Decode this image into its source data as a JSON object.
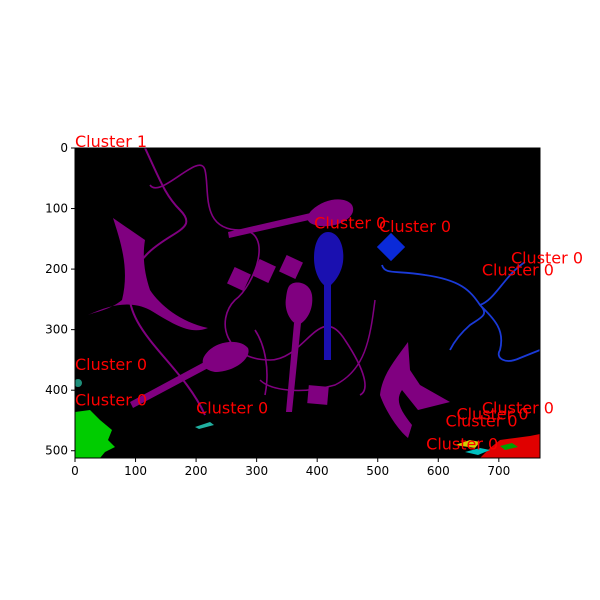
{
  "chart_data": {
    "type": "image",
    "title": "",
    "xlabel": "",
    "ylabel": "",
    "xlim": [
      0,
      768
    ],
    "ylim": [
      512,
      0
    ],
    "x_ticks": [
      0,
      100,
      200,
      300,
      400,
      500,
      600,
      700
    ],
    "y_ticks": [
      0,
      100,
      200,
      300,
      400,
      500
    ],
    "grid": false,
    "colors": {
      "background": "#000000",
      "purple": "#800080",
      "blue": "#1010c8",
      "green": "#00cc00",
      "red": "#e00000",
      "label": "#ff0000"
    },
    "annotations": [
      {
        "text": "Cluster 1",
        "x": 0,
        "y": 0
      },
      {
        "text": "Cluster 0",
        "x": 395,
        "y": 135
      },
      {
        "text": "Cluster 0",
        "x": 502,
        "y": 140
      },
      {
        "text": "Cluster 0",
        "x": 720,
        "y": 192
      },
      {
        "text": "Cluster 0",
        "x": 672,
        "y": 212
      },
      {
        "text": "Cluster 0",
        "x": 0,
        "y": 368
      },
      {
        "text": "Cluster 0",
        "x": 0,
        "y": 427
      },
      {
        "text": "Cluster 0",
        "x": 200,
        "y": 440
      },
      {
        "text": "Cluster 0",
        "x": 672,
        "y": 440
      },
      {
        "text": "Cluster 0",
        "x": 630,
        "y": 450
      },
      {
        "text": "Cluster 0",
        "x": 612,
        "y": 462
      },
      {
        "text": "Cluster 0",
        "x": 580,
        "y": 500
      }
    ]
  }
}
